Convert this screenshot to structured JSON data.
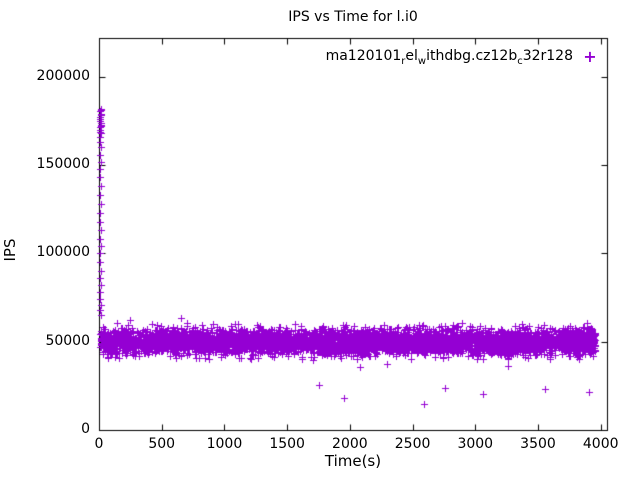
{
  "title": "IPS vs Time for l.i0",
  "xlabel": "Time(s)",
  "ylabel": "IPS",
  "legend": {
    "segments": [
      {
        "text": "ma120101"
      },
      {
        "sub": "r"
      },
      {
        "text": "el"
      },
      {
        "sub": "w"
      },
      {
        "text": "ithdbg.cz12b"
      },
      {
        "sub": "c"
      },
      {
        "text": "32r128"
      }
    ],
    "plain_label": "ma120101_rel_withdbg.cz12b_c32r128",
    "marker": "+"
  },
  "colors": {
    "series": "#9400d3",
    "axis": "#000000",
    "background": "#ffffff",
    "text": "#000000"
  },
  "chart_data": {
    "type": "scatter",
    "marker": "plus",
    "title": "IPS vs Time for l.i0",
    "xlabel": "Time(s)",
    "ylabel": "IPS",
    "xlim": [
      0,
      4050
    ],
    "ylim": [
      0,
      222000
    ],
    "xticks": [
      0,
      500,
      1000,
      1500,
      2000,
      2500,
      3000,
      3500,
      4000
    ],
    "yticks": [
      0,
      50000,
      100000,
      150000,
      200000
    ],
    "grid": false,
    "legend_position": "top-right-inside",
    "series_name": "ma120101_rel_withdbg.cz12b_c32r128",
    "band": {
      "comment": "dense steady-state band of IPS samples",
      "x_min": 10,
      "x_max": 3955,
      "y_mean": 50000,
      "y_sd": 3600,
      "y_min": 39500,
      "y_max": 62500,
      "count": 4600,
      "seed": 42
    },
    "startup_spike": [
      [
        12,
        65000
      ],
      [
        9,
        68000
      ],
      [
        14,
        71000
      ],
      [
        11,
        74000
      ],
      [
        10,
        78000
      ],
      [
        13,
        82000
      ],
      [
        9,
        86000
      ],
      [
        12,
        90000
      ],
      [
        10,
        95000
      ],
      [
        11,
        100000
      ],
      [
        13,
        104000
      ],
      [
        10,
        108000
      ],
      [
        12,
        113000
      ],
      [
        9,
        118000
      ],
      [
        11,
        123000
      ],
      [
        14,
        128000
      ],
      [
        10,
        133000
      ],
      [
        12,
        138000
      ],
      [
        11,
        143000
      ],
      [
        9,
        148000
      ],
      [
        13,
        152000
      ],
      [
        10,
        156000
      ],
      [
        12,
        160000
      ],
      [
        11,
        163000
      ],
      [
        10,
        166000
      ],
      [
        13,
        168000
      ],
      [
        9,
        170000
      ],
      [
        12,
        172000
      ],
      [
        14,
        174000
      ],
      [
        10,
        176000
      ],
      [
        11,
        177500
      ],
      [
        12,
        179000
      ],
      [
        9,
        180500
      ],
      [
        13,
        182000
      ],
      [
        11,
        169000
      ],
      [
        10,
        175000
      ],
      [
        12,
        181000
      ],
      [
        14,
        173000
      ],
      [
        8,
        171500
      ],
      [
        13,
        178500
      ]
    ],
    "high_outliers": [
      [
        140,
        60500
      ],
      [
        250,
        62500
      ],
      [
        420,
        60000
      ],
      [
        650,
        63500
      ],
      [
        700,
        60500
      ],
      [
        1050,
        58800
      ],
      [
        460,
        59500
      ]
    ],
    "low_outliers": [
      [
        1755,
        25500
      ],
      [
        1950,
        18200
      ],
      [
        2080,
        35500
      ],
      [
        2590,
        14500
      ],
      [
        2760,
        23800
      ],
      [
        3060,
        20500
      ],
      [
        3260,
        36500
      ],
      [
        3555,
        23500
      ],
      [
        3905,
        21800
      ],
      [
        2300,
        37500
      ]
    ]
  }
}
